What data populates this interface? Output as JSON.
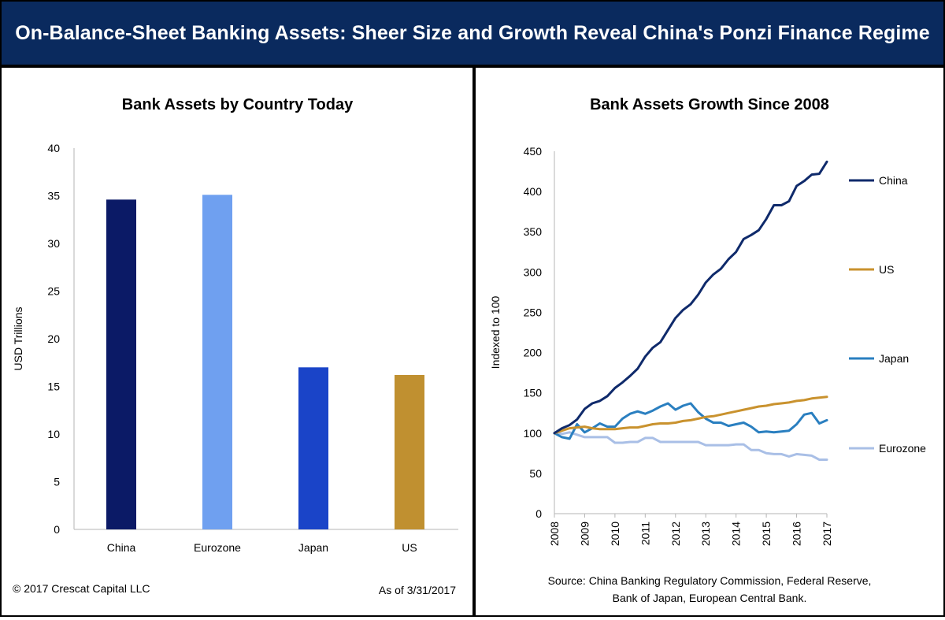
{
  "banner": {
    "title": "On-Balance-Sheet Banking Assets: Sheer Size and Growth Reveal China's Ponzi Finance Regime"
  },
  "colors": {
    "banner_bg": "#0a2a5e",
    "china_bar": "#0b1a66",
    "eurozone_bar": "#6fa0f0",
    "japan_bar": "#1a44c8",
    "us_bar": "#c09030",
    "china_line": "#0f2a6b",
    "us_line": "#c9922e",
    "japan_line": "#2a7fc0",
    "eurozone_line": "#a9bfe6"
  },
  "left_panel": {
    "footer_copyright": "© 2017 Crescat Capital LLC",
    "footer_date": "As of 3/31/2017"
  },
  "right_panel": {
    "source_line1": "Source: China Banking Regulatory Commission, Federal Reserve,",
    "source_line2": "Bank of Japan, European Central Bank."
  },
  "chart_data": [
    {
      "type": "bar",
      "title": "Bank Assets by Country Today",
      "ylabel": "USD Trillions",
      "xlabel": "",
      "ylim": [
        0,
        40
      ],
      "yticks": [
        0,
        5,
        10,
        15,
        20,
        25,
        30,
        35,
        40
      ],
      "categories": [
        "China",
        "Eurozone",
        "Japan",
        "US"
      ],
      "values": [
        34.6,
        35.1,
        17.0,
        16.2
      ],
      "grid": false
    },
    {
      "type": "line",
      "title": "Bank Assets Growth Since 2008",
      "ylabel": "Indexed to 100",
      "xlabel": "",
      "ylim": [
        0,
        450
      ],
      "xlim": [
        2008,
        2017
      ],
      "yticks": [
        0,
        50,
        100,
        150,
        200,
        250,
        300,
        350,
        400,
        450
      ],
      "xticks": [
        "2008",
        "2009",
        "2010",
        "2011",
        "2012",
        "2013",
        "2014",
        "2015",
        "2016",
        "2017"
      ],
      "legend_position": "right",
      "grid": false,
      "series": [
        {
          "name": "China",
          "x": [
            2008.0,
            2008.25,
            2008.5,
            2008.75,
            2009.0,
            2009.25,
            2009.5,
            2009.75,
            2010.0,
            2010.25,
            2010.5,
            2010.75,
            2011.0,
            2011.25,
            2011.5,
            2011.75,
            2012.0,
            2012.25,
            2012.5,
            2012.75,
            2013.0,
            2013.25,
            2013.5,
            2013.75,
            2014.0,
            2014.25,
            2014.5,
            2014.75,
            2015.0,
            2015.25,
            2015.5,
            2015.75,
            2016.0,
            2016.25,
            2016.5,
            2016.75,
            2017.0
          ],
          "values": [
            100,
            106,
            110,
            117,
            130,
            137,
            140,
            146,
            156,
            163,
            171,
            180,
            195,
            206,
            213,
            228,
            243,
            253,
            260,
            272,
            287,
            297,
            304,
            316,
            325,
            341,
            346,
            352,
            366,
            383,
            383,
            388,
            407,
            413,
            421,
            422,
            437
          ]
        },
        {
          "name": "US",
          "x": [
            2008.0,
            2008.25,
            2008.5,
            2008.75,
            2009.0,
            2009.25,
            2009.5,
            2009.75,
            2010.0,
            2010.25,
            2010.5,
            2010.75,
            2011.0,
            2011.25,
            2011.5,
            2011.75,
            2012.0,
            2012.25,
            2012.5,
            2012.75,
            2013.0,
            2013.25,
            2013.5,
            2013.75,
            2014.0,
            2014.25,
            2014.5,
            2014.75,
            2015.0,
            2015.25,
            2015.5,
            2015.75,
            2016.0,
            2016.25,
            2016.5,
            2016.75,
            2017.0
          ],
          "values": [
            100,
            103,
            106,
            107,
            108,
            106,
            105,
            105,
            105,
            106,
            107,
            107,
            109,
            111,
            112,
            112,
            113,
            115,
            116,
            118,
            120,
            121,
            123,
            125,
            127,
            129,
            131,
            133,
            134,
            136,
            137,
            138,
            140,
            141,
            143,
            144,
            145
          ]
        },
        {
          "name": "Japan",
          "x": [
            2008.0,
            2008.25,
            2008.5,
            2008.75,
            2009.0,
            2009.25,
            2009.5,
            2009.75,
            2010.0,
            2010.25,
            2010.5,
            2010.75,
            2011.0,
            2011.25,
            2011.5,
            2011.75,
            2012.0,
            2012.25,
            2012.5,
            2012.75,
            2013.0,
            2013.25,
            2013.5,
            2013.75,
            2014.0,
            2014.25,
            2014.5,
            2014.75,
            2015.0,
            2015.25,
            2015.5,
            2015.75,
            2016.0,
            2016.25,
            2016.5,
            2016.75,
            2017.0
          ],
          "values": [
            100,
            95,
            93,
            111,
            101,
            106,
            112,
            108,
            108,
            118,
            124,
            127,
            124,
            128,
            133,
            137,
            129,
            134,
            137,
            126,
            118,
            113,
            113,
            109,
            111,
            113,
            108,
            101,
            102,
            101,
            102,
            103,
            111,
            123,
            125,
            112,
            116
          ]
        },
        {
          "name": "Eurozone",
          "x": [
            2008.0,
            2008.25,
            2008.5,
            2008.75,
            2009.0,
            2009.25,
            2009.5,
            2009.75,
            2010.0,
            2010.25,
            2010.5,
            2010.75,
            2011.0,
            2011.25,
            2011.5,
            2011.75,
            2012.0,
            2012.25,
            2012.5,
            2012.75,
            2013.0,
            2013.25,
            2013.5,
            2013.75,
            2014.0,
            2014.25,
            2014.5,
            2014.75,
            2015.0,
            2015.25,
            2015.5,
            2015.75,
            2016.0,
            2016.25,
            2016.5,
            2016.75,
            2017.0
          ],
          "values": [
            100,
            99,
            101,
            98,
            95,
            95,
            95,
            95,
            88,
            88,
            89,
            89,
            94,
            94,
            89,
            89,
            89,
            89,
            89,
            89,
            85,
            85,
            85,
            85,
            86,
            86,
            79,
            79,
            75,
            74,
            74,
            71,
            74,
            73,
            72,
            67,
            67
          ]
        }
      ]
    }
  ]
}
